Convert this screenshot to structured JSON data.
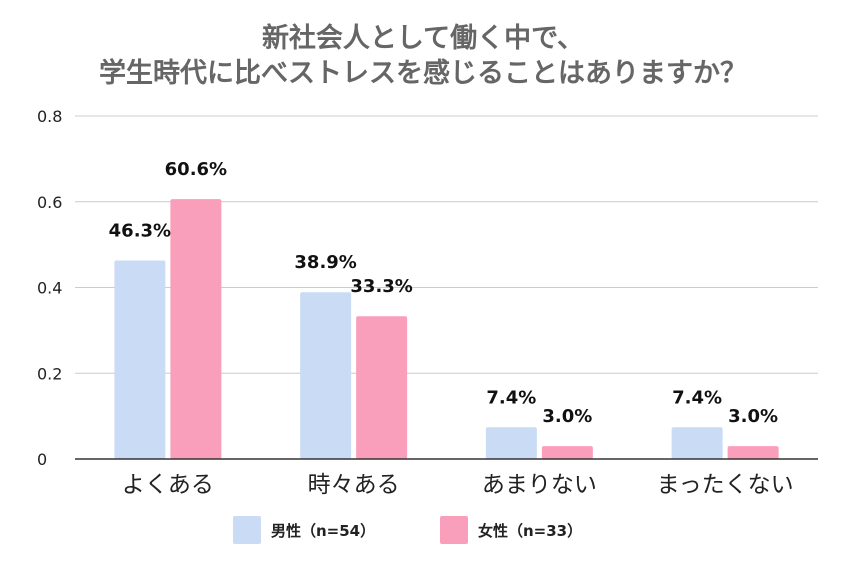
{
  "chart_data": {
    "type": "bar",
    "title_lines": [
      "新社会人として働く中で、",
      "学生時代に比べストレスを感じることはありますか？"
    ],
    "categories": [
      "よくある",
      "時々ある",
      "あまりない",
      "まったくない"
    ],
    "series": [
      {
        "name": "男性（n=54）",
        "values": [
          0.463,
          0.389,
          0.074,
          0.074
        ],
        "labels": [
          "46.3%",
          "38.9%",
          "7.4%",
          "7.4%"
        ],
        "color": "#c9dbf5"
      },
      {
        "name": "女性（n=33）",
        "values": [
          0.606,
          0.333,
          0.03,
          0.03
        ],
        "labels": [
          "60.6%",
          "33.3%",
          "3.0%",
          "3.0%"
        ],
        "color": "#f99fbb"
      }
    ],
    "ylim": [
      0,
      0.8
    ],
    "yticks": [
      0,
      0.2,
      0.4,
      0.6,
      0.8
    ],
    "ytick_labels": [
      "0",
      "0.2",
      "0.4",
      "0.6",
      "0.8"
    ],
    "grid": true,
    "legend_position": "bottom"
  }
}
